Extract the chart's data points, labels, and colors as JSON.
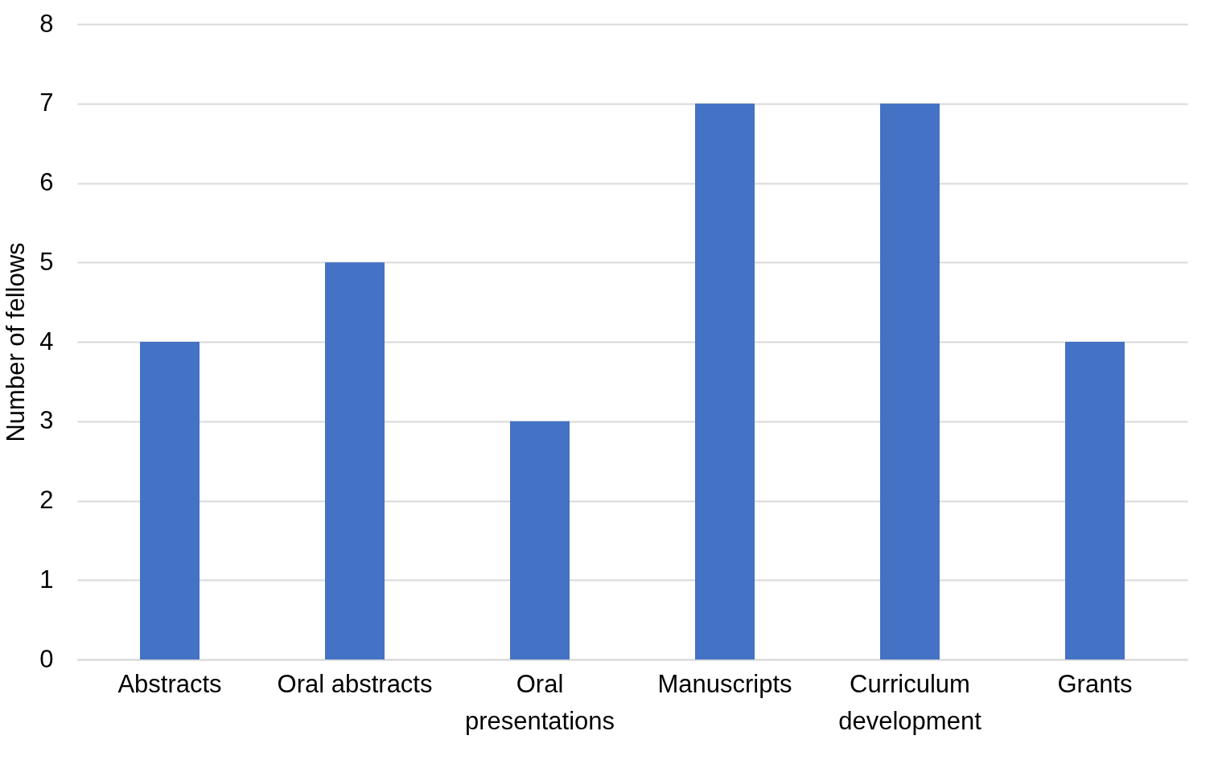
{
  "chart_data": {
    "type": "bar",
    "ylabel": "Number of fellows",
    "categories": [
      "Abstracts",
      "Oral abstracts",
      "Oral presentations",
      "Manuscripts",
      "Curriculum development",
      "Grants"
    ],
    "values": [
      4,
      5,
      3,
      7,
      7,
      4
    ],
    "color": "#4472c4",
    "ylim": [
      0,
      8
    ],
    "yticks": [
      0,
      1,
      2,
      3,
      4,
      5,
      6,
      7,
      8
    ],
    "grid": "y"
  }
}
